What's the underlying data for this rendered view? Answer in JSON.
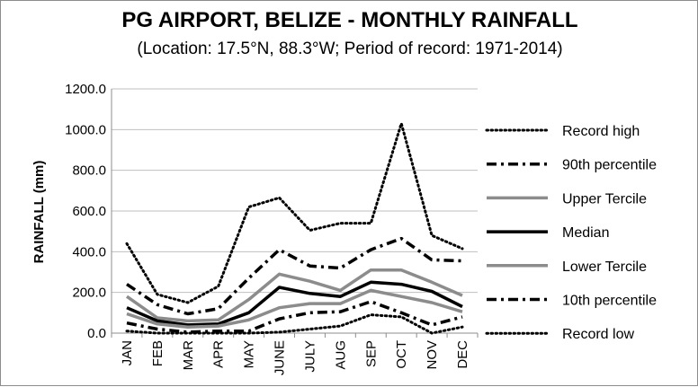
{
  "chart_data": {
    "type": "line",
    "title": "PG AIRPORT, BELIZE - MONTHLY RAINFALL",
    "subtitle": "(Location: 17.5°N, 88.3°W; Period of record: 1971-2014)",
    "xlabel": "",
    "ylabel": "RAINFALL (mm)",
    "ylim": [
      0,
      1200
    ],
    "ytick_values": [
      0,
      200,
      400,
      600,
      800,
      1000,
      1200
    ],
    "ytick_labels": [
      "0.0",
      "200.0",
      "400.0",
      "600.0",
      "800.0",
      "1000.0",
      "1200.0"
    ],
    "grid": "horizontal",
    "legend_position": "right",
    "categories": [
      "JAN",
      "FEB",
      "MAR",
      "APR",
      "MAY",
      "JUNE",
      "JULY",
      "AUG",
      "SEP",
      "OCT",
      "NOV",
      "DEC"
    ],
    "series": [
      {
        "name": "Record high",
        "style": "dotted",
        "color": "#000000",
        "values": [
          440,
          190,
          150,
          230,
          620,
          665,
          505,
          540,
          540,
          1030,
          480,
          415
        ]
      },
      {
        "name": "90th percentile",
        "style": "dashdot",
        "color": "#000000",
        "values": [
          240,
          140,
          95,
          120,
          270,
          410,
          330,
          320,
          410,
          465,
          360,
          355
        ]
      },
      {
        "name": "Upper Tercile",
        "style": "solid",
        "color": "#8c8c8c",
        "values": [
          180,
          75,
          60,
          65,
          165,
          290,
          255,
          210,
          310,
          310,
          250,
          185
        ]
      },
      {
        "name": "Median",
        "style": "solid",
        "color": "#000000",
        "values": [
          125,
          60,
          40,
          45,
          100,
          225,
          195,
          180,
          250,
          240,
          205,
          130
        ]
      },
      {
        "name": "Lower Tercile",
        "style": "solid",
        "color": "#8c8c8c",
        "values": [
          95,
          45,
          30,
          35,
          65,
          125,
          145,
          145,
          210,
          180,
          150,
          105
        ]
      },
      {
        "name": "10th percentile",
        "style": "dashdot",
        "color": "#000000",
        "values": [
          50,
          20,
          5,
          10,
          10,
          70,
          100,
          105,
          155,
          100,
          40,
          80
        ]
      },
      {
        "name": "Record low",
        "style": "dotted",
        "color": "#000000",
        "values": [
          10,
          0,
          0,
          0,
          0,
          5,
          20,
          35,
          90,
          80,
          0,
          30
        ]
      }
    ]
  }
}
